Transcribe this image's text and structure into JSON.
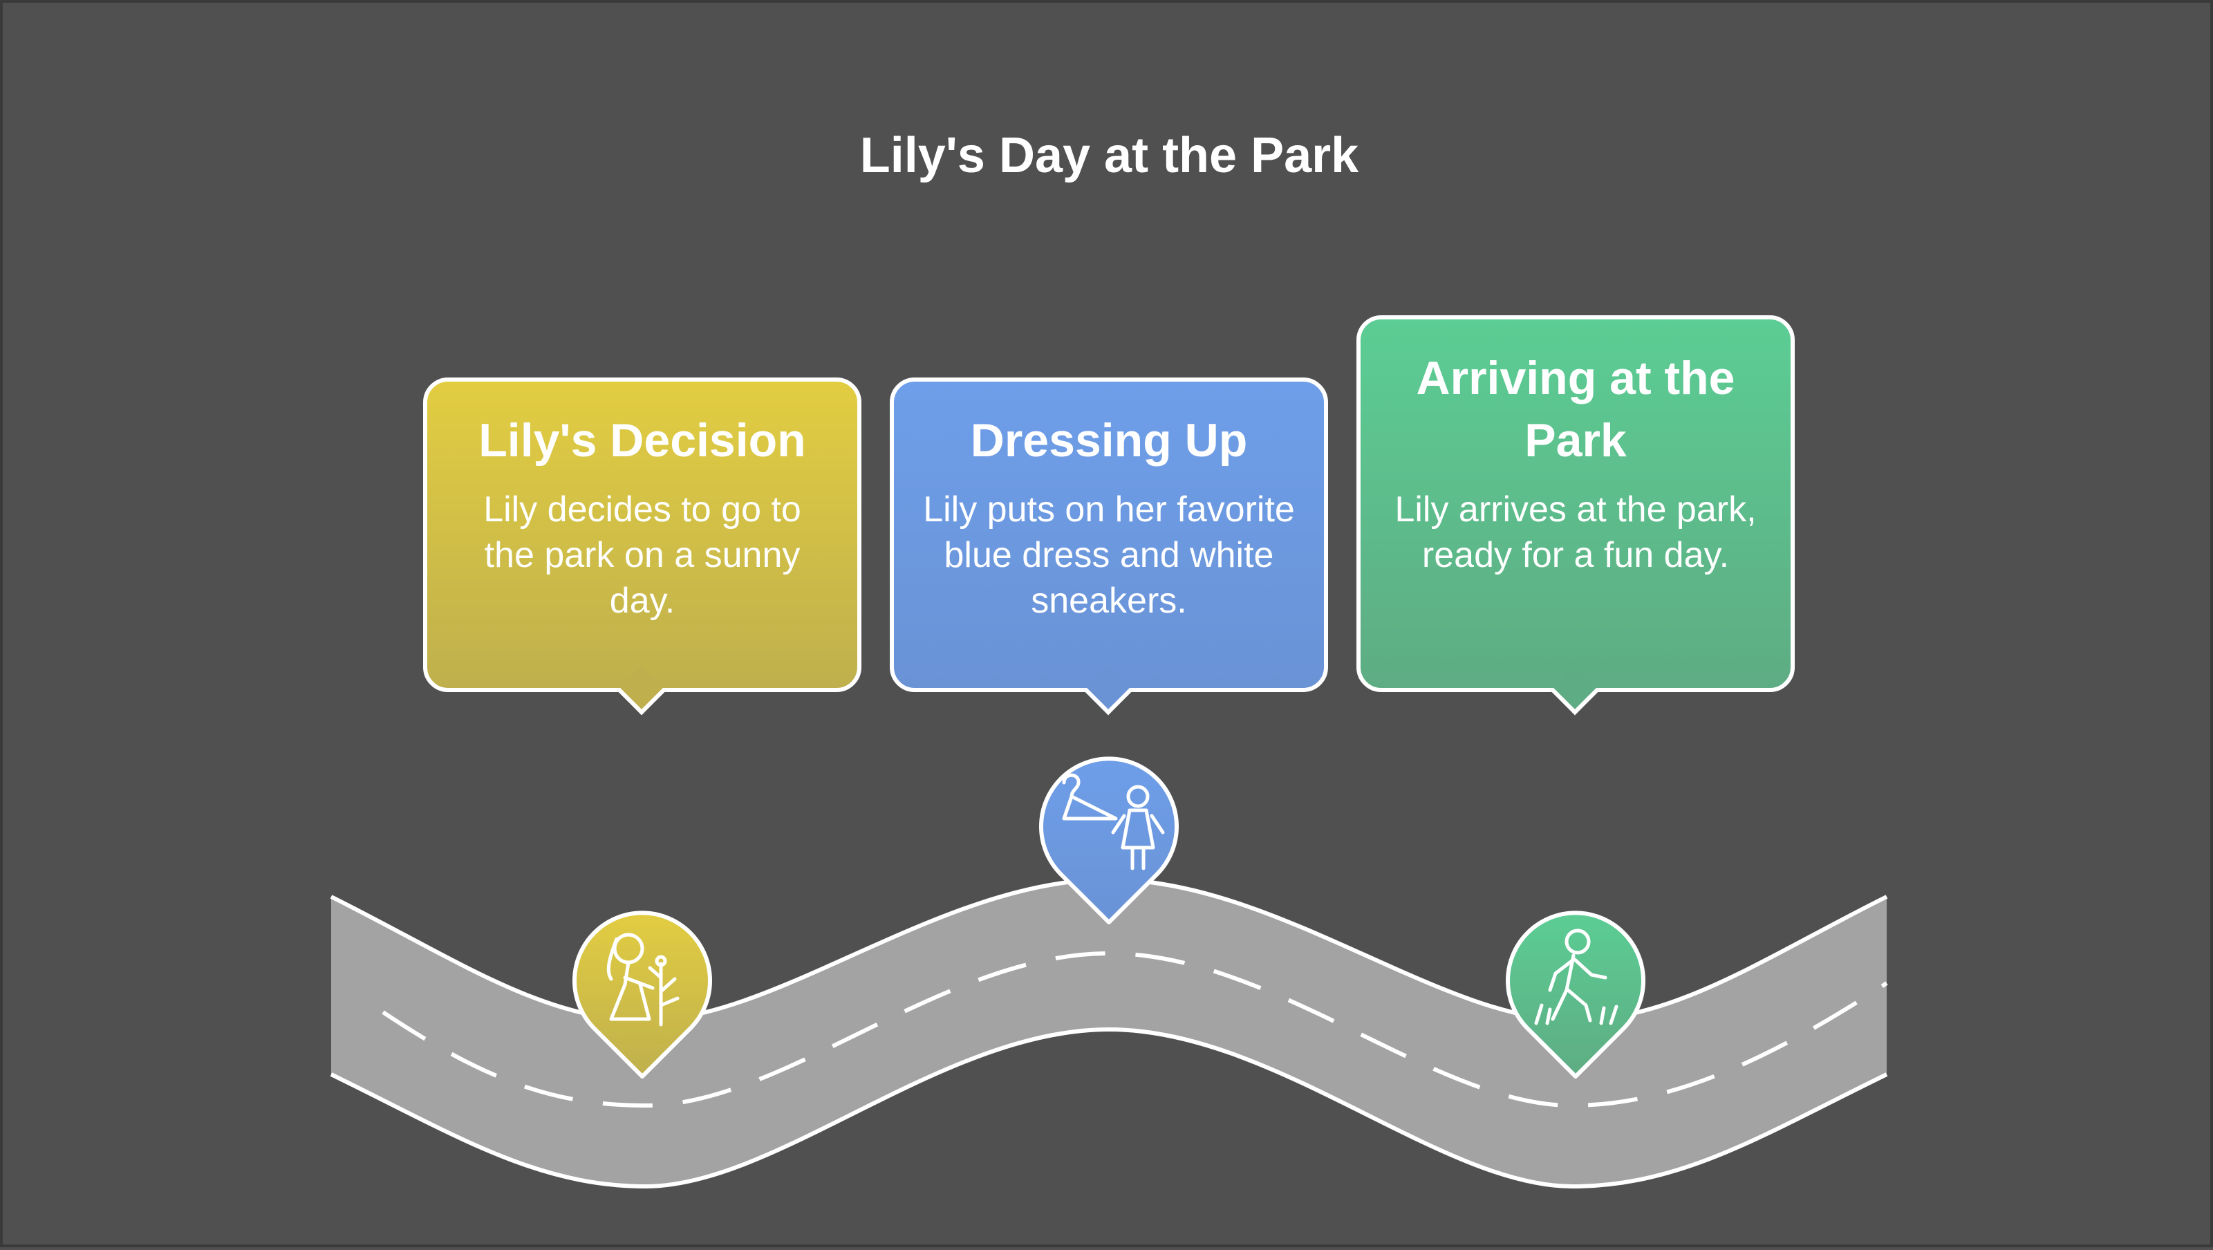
{
  "title": "Lily's Day at the Park",
  "steps": [
    {
      "title": "Lily's Decision",
      "description": "Lily decides to go to the park on a sunny day.",
      "icon": "girl-with-flower-icon",
      "color_top": "#E2CD41",
      "color_bottom": "#BFB04D"
    },
    {
      "title": "Dressing Up",
      "description": "Lily puts on her favorite blue dress and white sneakers.",
      "icon": "hanger-and-girl-icon",
      "color_top": "#6E9EE9",
      "color_bottom": "#6A93D6"
    },
    {
      "title": "Arriving at the Park",
      "description": "Lily arrives at the park, ready for a fun day.",
      "icon": "walking-in-grass-icon",
      "color_top": "#5CCD94",
      "color_bottom": "#5EAC83"
    }
  ],
  "colors": {
    "background": "#505050",
    "road": "#A3A3A3",
    "outline": "#FFFFFF"
  }
}
